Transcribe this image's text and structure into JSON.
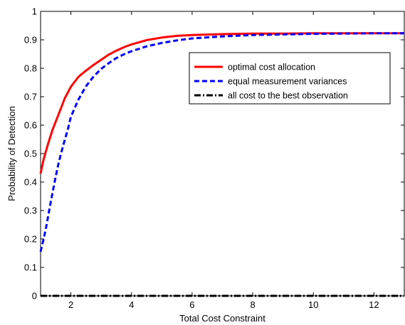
{
  "chart_data": {
    "type": "line",
    "xlabel": "Total Cost Constraint",
    "ylabel": "Probability of Detection",
    "xlim": [
      1,
      13
    ],
    "ylim": [
      0,
      1
    ],
    "xticks": [
      2,
      4,
      6,
      8,
      10,
      12
    ],
    "yticks": [
      0,
      0.1,
      0.2,
      0.3,
      0.4,
      0.5,
      0.6,
      0.7,
      0.8,
      0.9,
      1
    ],
    "grid": false,
    "legend_position": "right",
    "series": [
      {
        "name": "optimal cost allocation",
        "color": "#ff0000",
        "style": "solid",
        "x": [
          1.0,
          1.1,
          1.25,
          1.4,
          1.6,
          1.8,
          2.0,
          2.25,
          2.5,
          2.75,
          3.0,
          3.25,
          3.5,
          3.75,
          4.0,
          4.5,
          5.0,
          5.5,
          6.0,
          7.0,
          8.0,
          9.0,
          10.0,
          11.0,
          12.0,
          13.0
        ],
        "y": [
          0.43,
          0.48,
          0.535,
          0.585,
          0.64,
          0.695,
          0.735,
          0.77,
          0.792,
          0.812,
          0.83,
          0.848,
          0.862,
          0.874,
          0.884,
          0.899,
          0.908,
          0.914,
          0.917,
          0.92,
          0.922,
          0.922,
          0.923,
          0.923,
          0.923,
          0.923
        ]
      },
      {
        "name": "equal measurement variances",
        "color": "#0000ff",
        "style": "dashed",
        "x": [
          1.0,
          1.1,
          1.2,
          1.3,
          1.4,
          1.5,
          1.6,
          1.75,
          1.9,
          2.0,
          2.25,
          2.5,
          2.75,
          3.0,
          3.25,
          3.5,
          3.75,
          4.0,
          4.5,
          5.0,
          5.5,
          6.0,
          7.0,
          8.0,
          9.0,
          10.0,
          11.0,
          12.0,
          13.0
        ],
        "y": [
          0.155,
          0.2,
          0.25,
          0.31,
          0.365,
          0.42,
          0.47,
          0.53,
          0.585,
          0.63,
          0.69,
          0.737,
          0.771,
          0.798,
          0.818,
          0.836,
          0.849,
          0.86,
          0.877,
          0.889,
          0.898,
          0.905,
          0.912,
          0.917,
          0.919,
          0.921,
          0.922,
          0.923,
          0.923
        ]
      },
      {
        "name": "all cost to the best observation",
        "color": "#000000",
        "style": "dashdot",
        "x": [
          1,
          13
        ],
        "y": [
          0,
          0
        ]
      }
    ]
  }
}
